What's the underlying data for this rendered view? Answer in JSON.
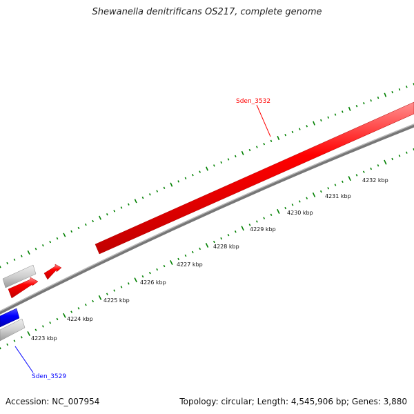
{
  "title": "Shewanella denitrificans OS217, complete genome",
  "footer": {
    "accession": "Accession: NC_007954",
    "summary": "Topology: circular; Length: 4,545,906 bp; Genes: 3,880"
  },
  "labels": {
    "gene_top": "Sden_3532",
    "gene_bottom": "Sden_3529"
  },
  "scale_labels": [
    "4223 kbp",
    "4224 kbp",
    "4225 kbp",
    "4226 kbp",
    "4227 kbp",
    "4228 kbp",
    "4229 kbp",
    "4230 kbp",
    "4231 kbp",
    "4232 kbp"
  ],
  "colors": {
    "forward_gene": "#ff0000",
    "reverse_gene": "#0000ff",
    "other_gene": "#cccccc",
    "backbone": "#888888",
    "ticks": "#008000"
  }
}
